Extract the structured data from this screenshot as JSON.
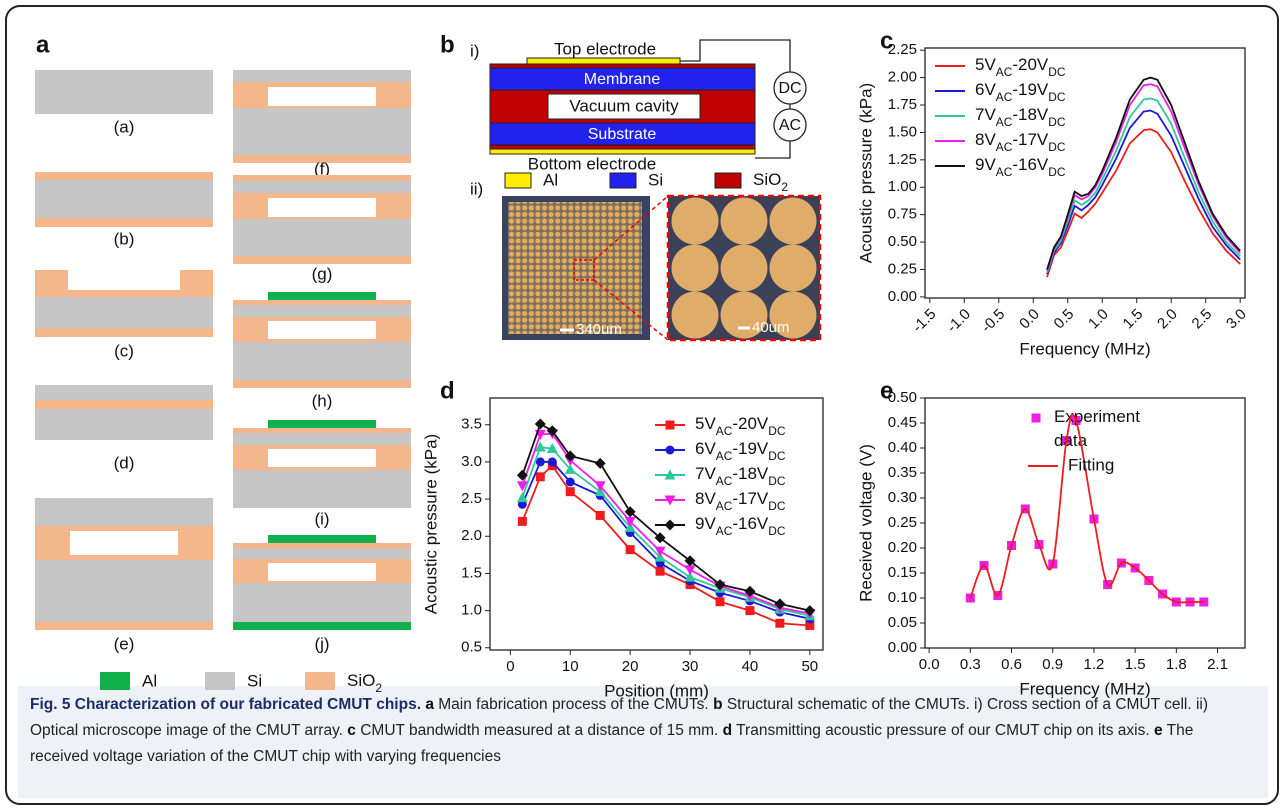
{
  "panel_a": {
    "label": "a",
    "steps": [
      "(a)",
      "(b)",
      "(c)",
      "(d)",
      "(e)",
      "(f)",
      "(g)",
      "(h)",
      "(i)",
      "(j)"
    ],
    "legend": [
      "Al",
      "Si",
      "SiO2"
    ]
  },
  "panel_b": {
    "label": "b",
    "parts": [
      "i)",
      "ii)"
    ],
    "schematic": {
      "top_electrode": "Top electrode",
      "membrane": "Membrane",
      "cavity": "Vacuum cavity",
      "substrate": "Substrate",
      "bottom_electrode": "Bottom electrode",
      "dc": "DC",
      "ac": "AC"
    },
    "legend": [
      "Al",
      "Si",
      "SiO2"
    ],
    "scale_bars": [
      "340um",
      "40um"
    ]
  },
  "chart_data": [
    {
      "type": "line",
      "panel": "c",
      "xlabel": "Frequency (MHz)",
      "ylabel": "Acoustic pressure (kPa)",
      "xlim": [
        -1.57,
        3.07
      ],
      "ylim": [
        -0.01,
        2.27
      ],
      "xtick_rotation": -45,
      "legend": "upper left",
      "xticks": [
        -1.5,
        {
          "value": -1,
          "label": "-1.0"
        },
        -0.5,
        {
          "value": 0,
          "label": "0.0"
        },
        0.5,
        {
          "value": 1,
          "label": "1.0"
        },
        1.5,
        {
          "value": 2,
          "label": "2.0"
        },
        2.5,
        {
          "value": 3,
          "label": "3.0"
        }
      ],
      "yticks": [
        {
          "value": 0,
          "label": "0.00"
        },
        0.25,
        {
          "value": 0.5,
          "label": "0.50"
        },
        0.75,
        {
          "value": 1,
          "label": "1.00"
        },
        1.25,
        {
          "value": 1.5,
          "label": "1.50"
        },
        1.75,
        {
          "value": 2,
          "label": "2.00"
        },
        2.25
      ],
      "x": [
        0.2,
        0.3,
        0.4,
        0.5,
        0.6,
        0.7,
        0.8,
        0.9,
        1.0,
        1.2,
        1.4,
        1.6,
        1.7,
        1.8,
        2.0,
        2.2,
        2.4,
        2.6,
        2.8,
        3.0
      ],
      "series": [
        {
          "name": "5VAC-20VDC",
          "color": "#ee1c1c",
          "values": [
            0.18,
            0.38,
            0.45,
            0.6,
            0.76,
            0.72,
            0.78,
            0.85,
            0.95,
            1.15,
            1.4,
            1.52,
            1.53,
            1.5,
            1.32,
            1.05,
            0.8,
            0.58,
            0.42,
            0.3
          ]
        },
        {
          "name": "6VAC-19VDC",
          "color": "#1a1ad6",
          "values": [
            0.21,
            0.4,
            0.49,
            0.65,
            0.83,
            0.79,
            0.84,
            0.91,
            1.02,
            1.26,
            1.54,
            1.69,
            1.7,
            1.67,
            1.47,
            1.18,
            0.89,
            0.64,
            0.47,
            0.34
          ]
        },
        {
          "name": "7VAC-18VDC",
          "color": "#2ec99a",
          "values": [
            0.22,
            0.42,
            0.51,
            0.69,
            0.88,
            0.84,
            0.88,
            0.95,
            1.07,
            1.33,
            1.64,
            1.8,
            1.81,
            1.79,
            1.58,
            1.26,
            0.95,
            0.69,
            0.5,
            0.37
          ]
        },
        {
          "name": "8VAC-17VDC",
          "color": "#ee1ee8",
          "values": [
            0.24,
            0.44,
            0.54,
            0.73,
            0.93,
            0.89,
            0.92,
            1.0,
            1.12,
            1.41,
            1.75,
            1.93,
            1.94,
            1.92,
            1.69,
            1.35,
            1.02,
            0.74,
            0.54,
            0.4
          ]
        },
        {
          "name": "9VAC-16VDC",
          "color": "#111111",
          "values": [
            0.25,
            0.45,
            0.55,
            0.75,
            0.96,
            0.92,
            0.94,
            1.02,
            1.15,
            1.45,
            1.8,
            1.98,
            2.0,
            1.98,
            1.75,
            1.4,
            1.05,
            0.76,
            0.56,
            0.42
          ]
        }
      ]
    },
    {
      "type": "line",
      "panel": "d",
      "xlabel": "Position (mm)",
      "ylabel": "Acoustic pressure (kPa)",
      "xlim": [
        -3.4,
        52.2
      ],
      "ylim": [
        0.47,
        3.86
      ],
      "legend": "upper right",
      "xticks": [
        0,
        10,
        20,
        30,
        40,
        50
      ],
      "yticks": [
        0.5,
        {
          "value": 1,
          "label": "1.0"
        },
        1.5,
        {
          "value": 2,
          "label": "2.0"
        },
        2.5,
        {
          "value": 3,
          "label": "3.0"
        },
        3.5
      ],
      "x": [
        2,
        5,
        7,
        10,
        15,
        20,
        25,
        30,
        35,
        40,
        45,
        50
      ],
      "series": [
        {
          "name": "5VAC-20VDC",
          "color": "#ee1c1c",
          "marker": "square",
          "values": [
            2.2,
            2.8,
            2.95,
            2.6,
            2.28,
            1.82,
            1.53,
            1.35,
            1.12,
            1.0,
            0.83,
            0.8
          ]
        },
        {
          "name": "6VAC-19VDC",
          "color": "#1a1ad6",
          "marker": "circle",
          "values": [
            2.43,
            3.0,
            3.0,
            2.73,
            2.55,
            2.05,
            1.64,
            1.4,
            1.24,
            1.13,
            0.98,
            0.89
          ]
        },
        {
          "name": "7VAC-18VDC",
          "color": "#2ec99a",
          "marker": "triangle-up",
          "values": [
            2.52,
            3.2,
            3.18,
            2.9,
            2.6,
            2.12,
            1.72,
            1.45,
            1.3,
            1.18,
            1.02,
            0.93
          ]
        },
        {
          "name": "8VAC-17VDC",
          "color": "#ee1ee8",
          "marker": "triangle-down",
          "values": [
            2.68,
            3.37,
            3.38,
            3.02,
            2.68,
            2.2,
            1.8,
            1.55,
            1.33,
            1.2,
            1.04,
            0.96
          ]
        },
        {
          "name": "9VAC-16VDC",
          "color": "#111111",
          "marker": "diamond",
          "values": [
            2.82,
            3.51,
            3.42,
            3.08,
            2.98,
            2.33,
            1.98,
            1.67,
            1.35,
            1.26,
            1.09,
            1.0
          ]
        }
      ]
    },
    {
      "type": "line",
      "panel": "e",
      "xlabel": "Frequency (MHz)",
      "ylabel": "Received voltage (V)",
      "xlim": [
        -0.03,
        2.3
      ],
      "ylim": [
        0,
        0.5
      ],
      "legend": "upper right",
      "smooth": true,
      "xticks": [
        {
          "value": 0,
          "label": "0.0"
        },
        0.3,
        0.6,
        0.9,
        1.2,
        1.5,
        1.8,
        2.1
      ],
      "yticks": [
        {
          "value": 0,
          "label": "0.00"
        },
        0.05,
        {
          "value": 0.1,
          "label": "0.10"
        },
        0.15,
        {
          "value": 0.2,
          "label": "0.20"
        },
        0.25,
        {
          "value": 0.3,
          "label": "0.30"
        },
        0.35,
        {
          "value": 0.4,
          "label": "0.40"
        },
        0.45,
        {
          "value": 0.5,
          "label": "0.50"
        }
      ],
      "series": [
        {
          "name": "Experiment data",
          "color": "#ee1ee8",
          "marker": "square",
          "line": false,
          "x": [
            0.3,
            0.4,
            0.5,
            0.6,
            0.7,
            0.8,
            0.9,
            1.0,
            1.07,
            1.2,
            1.3,
            1.4,
            1.5,
            1.6,
            1.7,
            1.8,
            1.9,
            2.0
          ],
          "values": [
            0.1,
            0.165,
            0.105,
            0.205,
            0.278,
            0.207,
            0.168,
            0.415,
            0.455,
            0.258,
            0.127,
            0.17,
            0.16,
            0.135,
            0.108,
            0.092,
            0.092,
            0.092
          ]
        },
        {
          "name": "Fitting",
          "color": "#ee1c1c",
          "x": [
            0.3,
            0.4,
            0.5,
            0.6,
            0.7,
            0.8,
            0.9,
            1.0,
            1.07,
            1.2,
            1.3,
            1.4,
            1.5,
            1.6,
            1.7,
            1.8,
            1.9,
            2.0
          ],
          "values": [
            0.1,
            0.165,
            0.105,
            0.205,
            0.278,
            0.207,
            0.168,
            0.415,
            0.455,
            0.258,
            0.127,
            0.17,
            0.16,
            0.135,
            0.108,
            0.092,
            0.092,
            0.092
          ]
        }
      ]
    }
  ],
  "caption": {
    "title": "Fig. 5 Characterization of our fabricated CMUT chips.",
    "items": [
      {
        "label": "a",
        "text": "Main fabrication process of the CMUTs."
      },
      {
        "label": "b",
        "text": "Structural schematic of the CMUTs. i) Cross section of a CMUT cell. ii) Optical microscope image of the CMUT array."
      },
      {
        "label": "c",
        "text": "CMUT bandwidth measured at a distance of 15 mm."
      },
      {
        "label": "d",
        "text": "Transmitting acoustic pressure of our CMUT chip on its axis."
      },
      {
        "label": "e",
        "text": "The received voltage variation of the CMUT chip with varying frequencies"
      }
    ]
  }
}
